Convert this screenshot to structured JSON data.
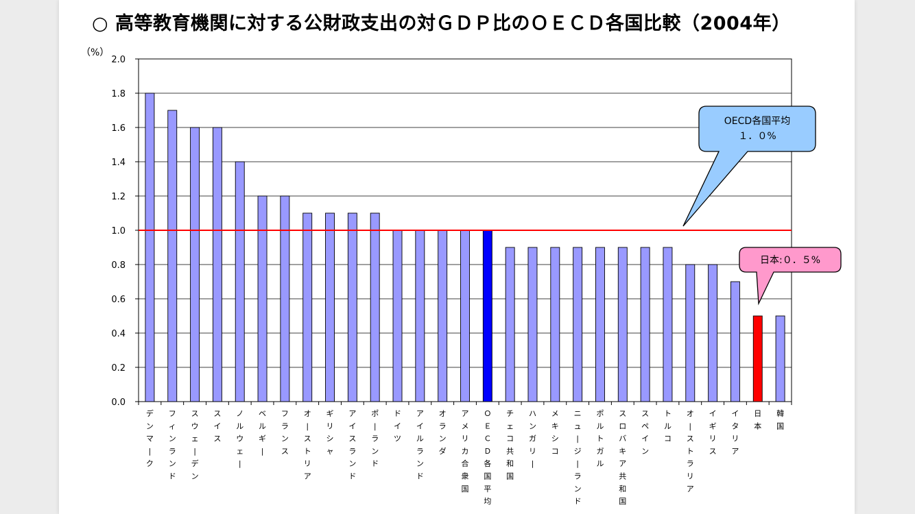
{
  "title": "○ 高等教育機関に対する公財政支出の対ＧＤＰ比のＯＥＣＤ各国比較（2004年）",
  "unit_label": "（%）",
  "callouts": {
    "oecd_average": {
      "line1": "OECD各国平均",
      "line2": "１．０%"
    },
    "japan": {
      "text": "日本:０．５%"
    }
  },
  "colors": {
    "bar": "#9999ff",
    "oecd_bar": "#0000ff",
    "japan_bar": "#ff0000",
    "average_line": "#ff0000",
    "oecd_callout_fill": "#99ccff",
    "japan_callout_fill": "#ff99cc"
  },
  "chart_data": {
    "type": "bar",
    "categories": [
      "デンマーク",
      "フィンランド",
      "スウェーデン",
      "スイス",
      "ノルウェー",
      "ベルギー",
      "フランス",
      "オーストリア",
      "ギリシャ",
      "アイスランド",
      "ポーランド",
      "ドイツ",
      "アイルランド",
      "オランダ",
      "アメリカ合衆国",
      "ＯＥＣＤ各国平均",
      "チェコ共和国",
      "ハンガリー",
      "メキシコ",
      "ニュージーランド",
      "ポルトガル",
      "スロバキア共和国",
      "スペイン",
      "トルコ",
      "オーストラリア",
      "イギリス",
      "イタリア",
      "日本",
      "韓国"
    ],
    "values": [
      1.8,
      1.7,
      1.6,
      1.6,
      1.4,
      1.2,
      1.2,
      1.1,
      1.1,
      1.1,
      1.1,
      1.0,
      1.0,
      1.0,
      1.0,
      1.0,
      0.9,
      0.9,
      0.9,
      0.9,
      0.9,
      0.9,
      0.9,
      0.9,
      0.8,
      0.8,
      0.7,
      0.5,
      0.5
    ],
    "highlight": {
      "ＯＥＣＤ各国平均": "oecd_bar",
      "日本": "japan_bar"
    },
    "reference_line": 1.0,
    "ylim": [
      0,
      2.0
    ],
    "yticks": [
      "0.0",
      "0.2",
      "0.4",
      "0.6",
      "0.8",
      "1.0",
      "1.2",
      "1.4",
      "1.6",
      "1.8",
      "2.0"
    ],
    "grid": "horizontal",
    "title": "",
    "xlabel": "",
    "ylabel": "（%）"
  }
}
